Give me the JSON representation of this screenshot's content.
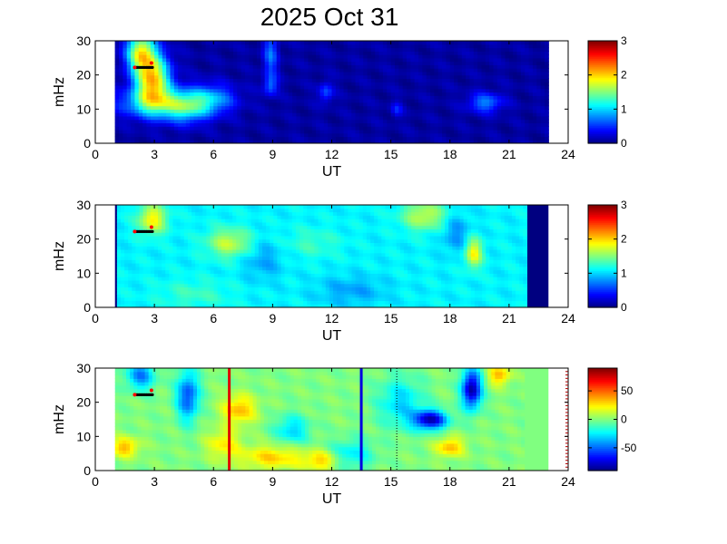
{
  "figure": {
    "title": "2025 Oct 31"
  },
  "colors": {
    "background": "#00008f",
    "axis": "#000000",
    "marker_black": "#000000",
    "marker_red": "#ff0000"
  },
  "chart_data": [
    {
      "type": "heatmap",
      "xlabel": "UT",
      "ylabel": "mHz",
      "xlim": [
        0,
        24
      ],
      "ylim": [
        0,
        30
      ],
      "xticks": [
        "0",
        "3",
        "6",
        "9",
        "12",
        "15",
        "18",
        "21",
        "24"
      ],
      "yticks": [
        "0",
        "10",
        "20",
        "30"
      ],
      "data_xrange": [
        1,
        23
      ],
      "colorbar": {
        "min": 0,
        "max": 3,
        "ticks": [
          "0",
          "1",
          "2",
          "3"
        ],
        "colormap": "jet"
      },
      "base_value": 0.1,
      "blobs": [
        {
          "x": 2.3,
          "y": 27,
          "sx": 0.5,
          "sy": 4,
          "v": 1.7
        },
        {
          "x": 2.9,
          "y": 19,
          "sx": 0.6,
          "sy": 5,
          "v": 2.0
        },
        {
          "x": 3.2,
          "y": 12,
          "sx": 1.3,
          "sy": 3,
          "v": 1.2
        },
        {
          "x": 5.8,
          "y": 13,
          "sx": 0.9,
          "sy": 3,
          "v": 0.9
        },
        {
          "x": 4.6,
          "y": 10,
          "sx": 0.8,
          "sy": 3,
          "v": 0.8
        },
        {
          "x": 8.9,
          "y": 26,
          "sx": 0.25,
          "sy": 5,
          "v": 0.7
        },
        {
          "x": 8.9,
          "y": 17,
          "sx": 0.25,
          "sy": 2,
          "v": 0.6
        },
        {
          "x": 11.7,
          "y": 15,
          "sx": 0.25,
          "sy": 2,
          "v": 0.6
        },
        {
          "x": 15.3,
          "y": 10,
          "sx": 0.2,
          "sy": 1.5,
          "v": 0.45
        },
        {
          "x": 19.8,
          "y": 12,
          "sx": 0.6,
          "sy": 2,
          "v": 0.75
        }
      ],
      "markers": {
        "x_start": 2.0,
        "x_end": 2.9,
        "y": 22.2,
        "red_x": [
          2.0,
          2.85
        ],
        "red_y_end": 23.5
      },
      "lines": []
    },
    {
      "type": "heatmap",
      "xlabel": "UT",
      "ylabel": "mHz",
      "xlim": [
        0,
        24
      ],
      "ylim": [
        0,
        30
      ],
      "xticks": [
        "0",
        "3",
        "6",
        "9",
        "12",
        "15",
        "18",
        "21",
        "24"
      ],
      "yticks": [
        "0",
        "10",
        "20",
        "30"
      ],
      "data_xrange": [
        1.1,
        21.9
      ],
      "colorbar": {
        "min": 0,
        "max": 3,
        "ticks": [
          "0",
          "1",
          "2",
          "3"
        ],
        "colormap": "jet"
      },
      "base_value": 1.1,
      "blobs": [
        {
          "x": 2.9,
          "y": 26,
          "sx": 0.5,
          "sy": 3,
          "v": 1.9
        },
        {
          "x": 6.8,
          "y": 19,
          "sx": 0.8,
          "sy": 3,
          "v": 1.7
        },
        {
          "x": 16.7,
          "y": 27,
          "sx": 0.8,
          "sy": 3,
          "v": 1.7
        },
        {
          "x": 19.2,
          "y": 16,
          "sx": 0.3,
          "sy": 3,
          "v": 1.9
        },
        {
          "x": 18.3,
          "y": 22,
          "sx": 0.5,
          "sy": 4,
          "v": 0.8
        },
        {
          "x": 8.5,
          "y": 14,
          "sx": 0.7,
          "sy": 4,
          "v": 0.85
        },
        {
          "x": 13.0,
          "y": 5,
          "sx": 1.2,
          "sy": 3,
          "v": 0.85
        },
        {
          "x": 5.0,
          "y": 4,
          "sx": 1.3,
          "sy": 3,
          "v": 1.3
        },
        {
          "x": 11.0,
          "y": 19,
          "sx": 1.0,
          "sy": 3,
          "v": 1.3
        }
      ],
      "markers": {
        "x_start": 2.0,
        "x_end": 2.9,
        "y": 22.2,
        "red_x": [
          2.0,
          2.85
        ],
        "red_y_end": 23.5
      },
      "lines": []
    },
    {
      "type": "heatmap",
      "xlabel": "UT",
      "ylabel": "mHz",
      "xlim": [
        0,
        24
      ],
      "ylim": [
        0,
        30
      ],
      "xticks": [
        "0",
        "3",
        "6",
        "9",
        "12",
        "15",
        "18",
        "21",
        "24"
      ],
      "yticks": [
        "0",
        "10",
        "20",
        "30"
      ],
      "data_xrange": [
        1,
        21.8
      ],
      "colorbar": {
        "min": -90,
        "max": 90,
        "ticks": [
          "50",
          "0",
          "-50"
        ],
        "tick_values": [
          50,
          0,
          -50
        ],
        "colormap": "jet"
      },
      "base_value": 0,
      "blobs": [
        {
          "x": 2.3,
          "y": 28,
          "sx": 0.5,
          "sy": 3,
          "v": -45
        },
        {
          "x": 4.7,
          "y": 22,
          "sx": 0.4,
          "sy": 5,
          "v": -55
        },
        {
          "x": 1.5,
          "y": 7,
          "sx": 0.5,
          "sy": 2,
          "v": 35
        },
        {
          "x": 7.3,
          "y": 18,
          "sx": 0.6,
          "sy": 3,
          "v": 35
        },
        {
          "x": 9.0,
          "y": 4,
          "sx": 1.2,
          "sy": 2.5,
          "v": 30
        },
        {
          "x": 11.5,
          "y": 3,
          "sx": 0.6,
          "sy": 2,
          "v": 30
        },
        {
          "x": 10.0,
          "y": 12,
          "sx": 0.6,
          "sy": 3,
          "v": -30
        },
        {
          "x": 17.0,
          "y": 15,
          "sx": 0.6,
          "sy": 2,
          "v": -80
        },
        {
          "x": 19.1,
          "y": 24,
          "sx": 0.35,
          "sy": 4,
          "v": -85
        },
        {
          "x": 18.0,
          "y": 7,
          "sx": 0.5,
          "sy": 2,
          "v": 35
        },
        {
          "x": 20.5,
          "y": 28,
          "sx": 0.4,
          "sy": 2,
          "v": 35
        },
        {
          "x": 13.0,
          "y": 5,
          "sx": 0.8,
          "sy": 3,
          "v": -25
        },
        {
          "x": 15.5,
          "y": 20,
          "sx": 0.8,
          "sy": 5,
          "v": -30
        },
        {
          "x": 6.5,
          "y": 8,
          "sx": 0.6,
          "sy": 3,
          "v": 25
        }
      ],
      "fill_strip": {
        "x_from": 21.8,
        "x_to": 23,
        "value": 0
      },
      "markers": {
        "x_start": 2.0,
        "x_end": 2.9,
        "y": 22.2,
        "red_x": [
          2.0,
          2.85
        ],
        "red_y_end": 23.5
      },
      "lines": [
        {
          "x": 6.8,
          "color": "#e00000",
          "style": "solid",
          "width": 3
        },
        {
          "x": 13.5,
          "color": "#0000e0",
          "style": "solid",
          "width": 3
        },
        {
          "x": 15.3,
          "color": "#000000",
          "style": "dotted",
          "width": 1
        }
      ],
      "right_ticks_color": "#b00000"
    }
  ]
}
